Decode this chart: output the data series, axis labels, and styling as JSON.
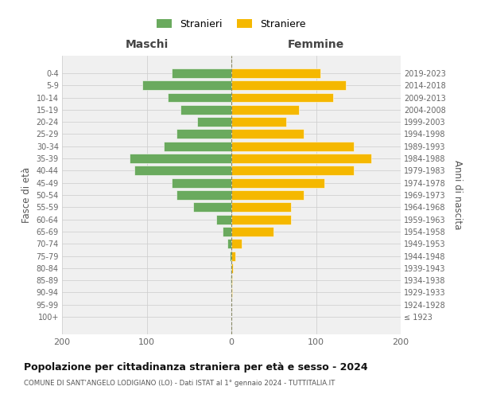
{
  "age_groups": [
    "100+",
    "95-99",
    "90-94",
    "85-89",
    "80-84",
    "75-79",
    "70-74",
    "65-69",
    "60-64",
    "55-59",
    "50-54",
    "45-49",
    "40-44",
    "35-39",
    "30-34",
    "25-29",
    "20-24",
    "15-19",
    "10-14",
    "5-9",
    "0-4"
  ],
  "birth_years": [
    "≤ 1923",
    "1924-1928",
    "1929-1933",
    "1934-1938",
    "1939-1943",
    "1944-1948",
    "1949-1953",
    "1954-1958",
    "1959-1963",
    "1964-1968",
    "1969-1973",
    "1974-1978",
    "1979-1983",
    "1984-1988",
    "1989-1993",
    "1994-1998",
    "1999-2003",
    "2004-2008",
    "2009-2013",
    "2014-2018",
    "2019-2023"
  ],
  "males": [
    0,
    0,
    0,
    1,
    1,
    2,
    5,
    10,
    18,
    45,
    65,
    70,
    115,
    120,
    80,
    65,
    40,
    60,
    75,
    105,
    70
  ],
  "females": [
    0,
    0,
    1,
    1,
    2,
    5,
    12,
    50,
    70,
    70,
    85,
    110,
    145,
    165,
    145,
    85,
    65,
    80,
    120,
    135,
    105
  ],
  "male_color": "#6aaa5e",
  "female_color": "#f5b800",
  "background_color": "#ffffff",
  "grid_color": "#cccccc",
  "title": "Popolazione per cittadinanza straniera per età e sesso - 2024",
  "subtitle": "COMUNE DI SANT'ANGELO LODIGIANO (LO) - Dati ISTAT al 1° gennaio 2024 - TUTTITALIA.IT",
  "ylabel_left": "Fasce di età",
  "ylabel_right": "Anni di nascita",
  "xlabel_left": "Maschi",
  "xlabel_top_right": "Femmine",
  "legend_stranieri": "Stranieri",
  "legend_straniere": "Straniere",
  "xlim": 200,
  "figsize": [
    6.0,
    5.0
  ],
  "dpi": 100
}
